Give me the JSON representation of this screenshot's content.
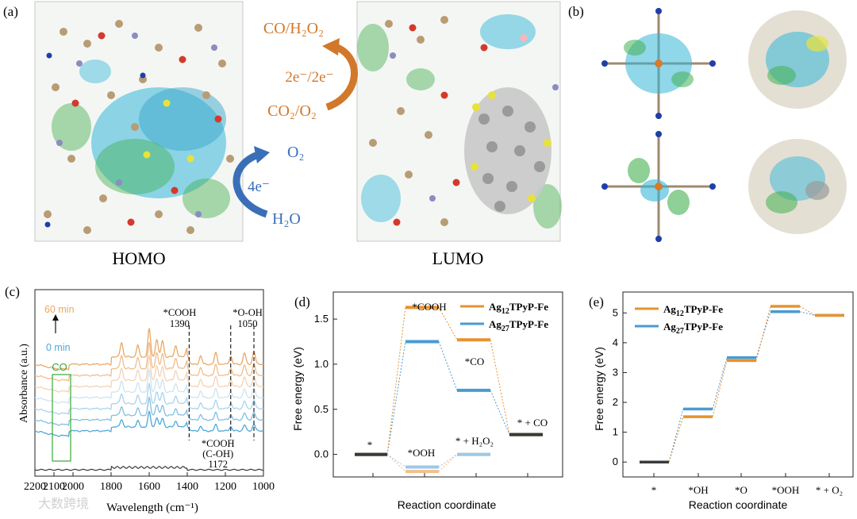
{
  "figure": {
    "panel_labels": [
      "(a)",
      "(b)",
      "(c)",
      "(d)",
      "(e)"
    ],
    "panel_a": {
      "homo_label": "HOMO",
      "lumo_label": "LUMO",
      "reaction_2e_product": "CO/H₂O₂",
      "reaction_2e_electrons": "2e⁻/2e⁻",
      "reaction_2e_reactant": "CO₂/O₂",
      "reaction_4e_o2": "O₂",
      "reaction_4e_electrons": "4e⁻",
      "reaction_4e_h2o": "H₂O"
    },
    "watermark": "大数跨境",
    "colors": {
      "orange": "#e8922e",
      "blue": "#4a9bd1",
      "dark": "#3a3a3a",
      "green": "#3aa63a",
      "light_orange": "#f2c08a",
      "light_blue": "#9cc8e6"
    }
  },
  "chart_data": [
    {
      "panel": "(c)",
      "type": "line",
      "xlabel": "Wavelength (cm⁻¹)",
      "ylabel": "Absorbance (a.u.)",
      "xlim": [
        2200,
        1000
      ],
      "xticks": [
        2200,
        2100,
        2000,
        1800,
        1600,
        1400,
        1200,
        1000
      ],
      "time_start": "0 min",
      "time_end": "60 min",
      "annotations": [
        {
          "label": "*COOH",
          "value": "1390",
          "x": 1390
        },
        {
          "label": "*O-OH",
          "value": "1050",
          "x": 1050
        },
        {
          "label": "*COOH",
          "value": "(C-OH)",
          "extra": "1172",
          "x": 1172
        }
      ],
      "co_label": "CO",
      "series_count": 7,
      "series_colors": [
        "#4ea8d8",
        "#7fbfe3",
        "#a9d3ec",
        "#cfe3ee",
        "#f3d2b4",
        "#f0bd8c",
        "#e8a868"
      ],
      "baseline_color": "#3a3a3a"
    },
    {
      "panel": "(d)",
      "type": "line",
      "xlabel": "Reaction coordinate",
      "ylabel": "Free energy (eV)",
      "ylim": [
        -0.25,
        1.8
      ],
      "yticks": [
        "0.0",
        "0.5",
        "1.0",
        "1.5"
      ],
      "legend": [
        {
          "name_main": "Ag",
          "sub1": "12",
          "name_rest": "TPyP-Fe",
          "color": "#e8922e"
        },
        {
          "name_main": "Ag",
          "sub1": "27",
          "name_rest": "TPyP-Fe",
          "color": "#4a9bd1"
        }
      ],
      "states": [
        "*",
        "*COOH",
        "*CO",
        "* + CO",
        "*OOH",
        "* + H₂O₂"
      ],
      "series": [
        {
          "name": "Ag12TPyP-Fe CO2RR",
          "values": [
            0.0,
            1.63,
            1.27,
            0.22
          ]
        },
        {
          "name": "Ag27TPyP-Fe CO2RR",
          "values": [
            0.0,
            1.25,
            0.71,
            0.22
          ]
        },
        {
          "name": "Ag12TPyP-Fe ORR",
          "values": [
            0.0,
            -0.19,
            0.0
          ]
        },
        {
          "name": "Ag27TPyP-Fe ORR",
          "values": [
            0.0,
            -0.14,
            0.0
          ]
        }
      ]
    },
    {
      "panel": "(e)",
      "type": "line",
      "xlabel": "Reaction coordinate",
      "ylabel": "Free energy (eV)",
      "ylim": [
        -0.5,
        5.7
      ],
      "yticks": [
        "0",
        "1",
        "2",
        "3",
        "4",
        "5"
      ],
      "legend": [
        {
          "name_main": "Ag",
          "sub1": "12",
          "name_rest": "TPyP-Fe",
          "color": "#e8922e"
        },
        {
          "name_main": "Ag",
          "sub1": "27",
          "name_rest": "TPyP-Fe",
          "color": "#4a9bd1"
        }
      ],
      "categories": [
        "*",
        "*OH",
        "*O",
        "*OOH",
        "* + O₂"
      ],
      "series": [
        {
          "name": "Ag12TPyP-Fe",
          "values": [
            0.0,
            1.52,
            3.4,
            5.22,
            4.92
          ]
        },
        {
          "name": "Ag27TPyP-Fe",
          "values": [
            0.0,
            1.78,
            3.5,
            5.04,
            4.92
          ]
        }
      ]
    }
  ]
}
